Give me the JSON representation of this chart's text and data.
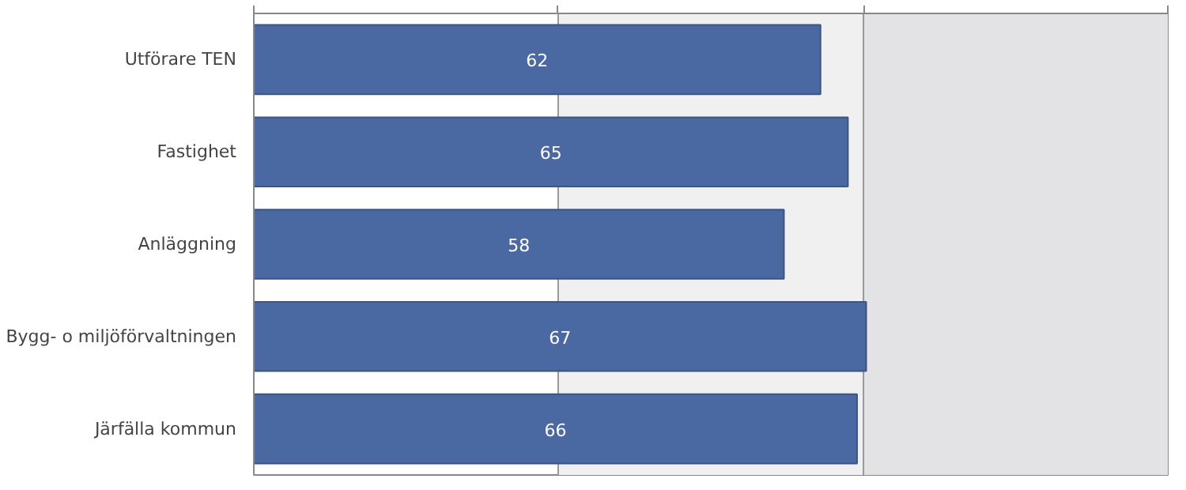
{
  "chart_data": {
    "type": "bar",
    "orientation": "horizontal",
    "categories": [
      "Utförare TEN",
      "Fastighet",
      "Anläggning",
      "Bygg- o miljöförvaltningen",
      "Järfälla kommun"
    ],
    "values": [
      62,
      65,
      58,
      67,
      66
    ],
    "color": "#4a69a2",
    "data_labels": true,
    "xlim": [
      0,
      100
    ],
    "xticks": [
      {
        "value": 0,
        "label": null
      },
      {
        "value": 33.3,
        "label": null
      },
      {
        "value": 66.7,
        "label": null
      },
      {
        "value": 100,
        "label": null
      }
    ],
    "tick_labels": "y",
    "ref_lines": [
      {
        "axis": "x",
        "value": 33.3,
        "color": "#999999"
      },
      {
        "axis": "x",
        "value": 66.7,
        "color": "#999999"
      }
    ],
    "bands": [
      {
        "axis": "x",
        "from": 33.3,
        "to": 66.7,
        "color": "#f0f0f0"
      },
      {
        "axis": "x",
        "from": 66.7,
        "to": 100,
        "color": "#e3e3e5"
      }
    ]
  }
}
